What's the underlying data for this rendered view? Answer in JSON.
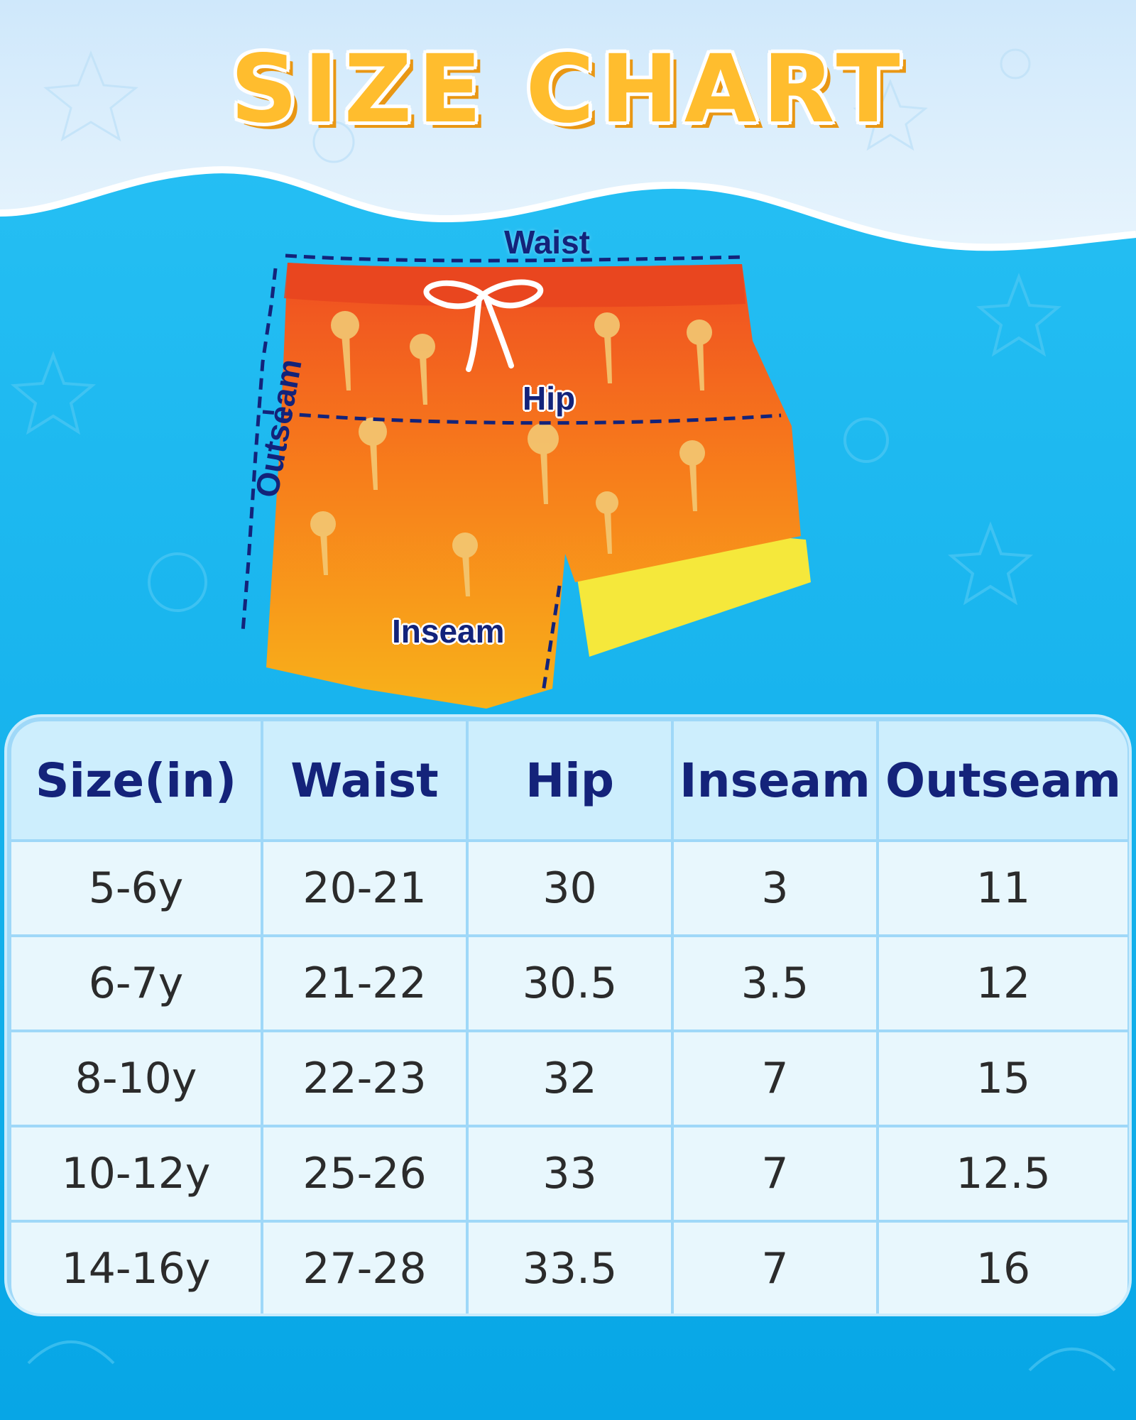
{
  "title": "SIZE CHART",
  "diagram": {
    "labels": {
      "waist": "Waist",
      "hip": "Hip",
      "inseam": "Inseam",
      "outseam": "Outseam"
    },
    "garment": "swim-shorts-illustration"
  },
  "table": {
    "headers": [
      "Size(in)",
      "Waist",
      "Hip",
      "Inseam",
      "Outseam"
    ],
    "rows": [
      [
        "5-6y",
        "20-21",
        "30",
        "3",
        "11"
      ],
      [
        "6-7y",
        "21-22",
        "30.5",
        "3.5",
        "12"
      ],
      [
        "8-10y",
        "22-23",
        "32",
        "7",
        "15"
      ],
      [
        "10-12y",
        "25-26",
        "33",
        "7",
        "12.5"
      ],
      [
        "14-16y",
        "27-28",
        "33.5",
        "7",
        "16"
      ]
    ]
  },
  "colors": {
    "title": "#ffbd2e",
    "label": "#13237a",
    "sky": "#d9eefc",
    "sea": "#10b0ec"
  }
}
